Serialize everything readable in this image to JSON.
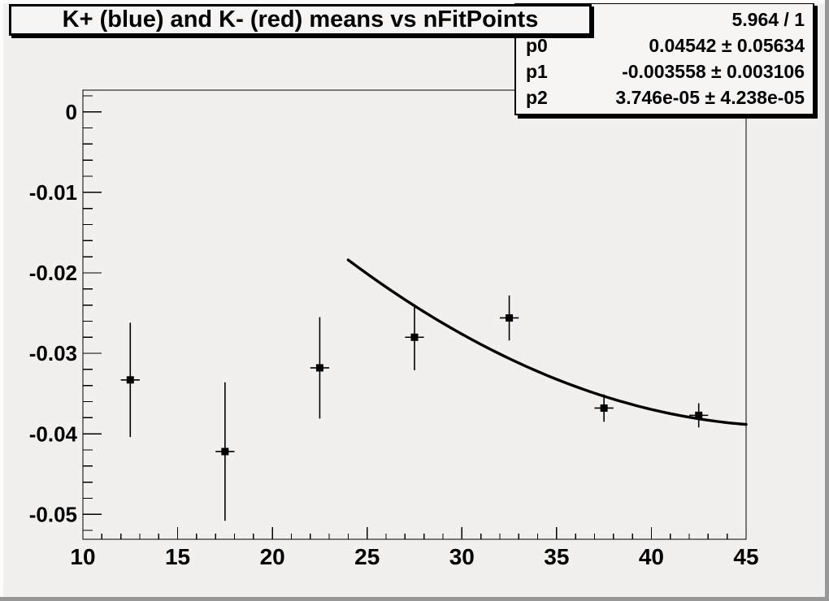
{
  "colors": {
    "canvas_bg": "#f2f0ef",
    "pave_bg": "#f7f5f4",
    "foreground": "#000000",
    "bevel_light": "#fcfcfc",
    "bevel_dark": "#979797"
  },
  "chart_data": {
    "type": "scatter",
    "title": "K+ (blue) and K- (red) means vs nFitPoints",
    "xlabel": "",
    "ylabel": "",
    "xlim": [
      10,
      45
    ],
    "ylim": [
      -0.0531,
      0.0027
    ],
    "x_ticks": [
      10,
      15,
      20,
      25,
      30,
      35,
      40,
      45
    ],
    "x_minor_step": 1,
    "y_ticks": [
      0,
      -0.01,
      -0.02,
      -0.03,
      -0.04,
      -0.05
    ],
    "y_tick_labels": [
      "0",
      "-0.01",
      "-0.02",
      "-0.03",
      "-0.04",
      "-0.05"
    ],
    "y_minor_step": 0.002,
    "grid": false,
    "legend": "none",
    "series": [
      {
        "name": "means",
        "marker": "filled-square",
        "color": "#000000",
        "points": [
          {
            "x": 12.5,
            "y": -0.0333,
            "ex": 0.5,
            "ey": 0.0071
          },
          {
            "x": 17.5,
            "y": -0.0422,
            "ex": 0.5,
            "ey": 0.0086
          },
          {
            "x": 22.5,
            "y": -0.0318,
            "ex": 0.5,
            "ey": 0.0063
          },
          {
            "x": 27.5,
            "y": -0.028,
            "ex": 0.5,
            "ey": 0.0041
          },
          {
            "x": 32.5,
            "y": -0.0256,
            "ex": 0.5,
            "ey": 0.0028
          },
          {
            "x": 37.5,
            "y": -0.0368,
            "ex": 0.5,
            "ey": 0.0017
          },
          {
            "x": 42.5,
            "y": -0.0377,
            "ex": 0.5,
            "ey": 0.0015
          }
        ]
      }
    ],
    "fit": {
      "type": "quadratic",
      "p0": 0.04542,
      "p1": -0.003558,
      "p2": 3.746e-05,
      "range": [
        24,
        45
      ],
      "color": "#000000",
      "line_width": 3.4
    },
    "stats": {
      "rows": [
        {
          "label": "",
          "value": "5.964 / 1"
        },
        {
          "label": "p0",
          "value": "0.04542 ± 0.05634"
        },
        {
          "label": "p1",
          "value": "-0.003558 ± 0.003106"
        },
        {
          "label": "p2",
          "value": "3.746e-05 ± 4.238e-05"
        }
      ]
    }
  }
}
